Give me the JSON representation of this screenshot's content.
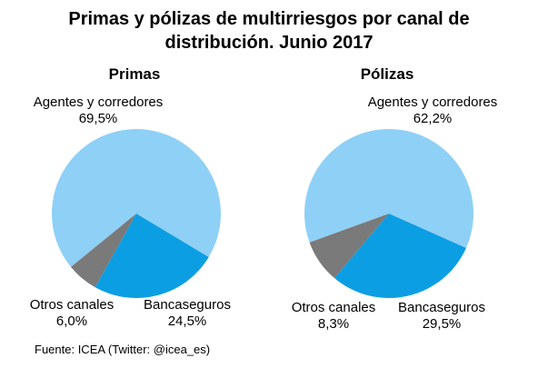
{
  "title_line1": "Primas y pólizas de multirriesgos  por canal de",
  "title_line2": "distribución. Junio 2017",
  "source": "Fuente: ICEA (Twitter: @icea_es)",
  "colors": {
    "agentes": "#8fd0f6",
    "bancaseguros": "#0c9ee3",
    "otros": "#7a7a7a"
  },
  "chart_data": [
    {
      "type": "pie",
      "title": "Primas",
      "slices": [
        {
          "label": "Agentes y corredores",
          "value_label": "69,5%",
          "value": 69.5
        },
        {
          "label": "Bancaseguros",
          "value_label": "24,5%",
          "value": 24.5
        },
        {
          "label": "Otros canales",
          "value_label": "6,0%",
          "value": 6.0
        }
      ]
    },
    {
      "type": "pie",
      "title": "Pólizas",
      "slices": [
        {
          "label": "Agentes y corredores",
          "value_label": "62,2%",
          "value": 62.2
        },
        {
          "label": "Bancaseguros",
          "value_label": "29,5%",
          "value": 29.5
        },
        {
          "label": "Otros canales",
          "value_label": "8,3%",
          "value": 8.3
        }
      ]
    }
  ]
}
